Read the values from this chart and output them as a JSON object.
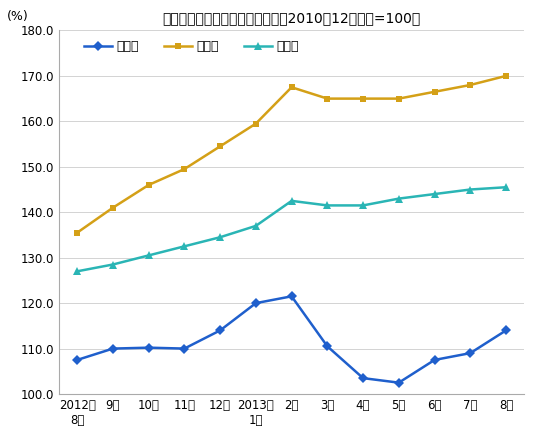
{
  "title": "猪肉、牛肉、羊肉价格变动情况（2010年12月价格=100）",
  "ylabel": "(%)",
  "x_labels": [
    "2012年\n8月",
    "9月",
    "10月",
    "11月",
    "12月",
    "2013年\n1月",
    "2月",
    "3月",
    "4月",
    "5月",
    "6月",
    "7月",
    "8月"
  ],
  "pork": [
    107.5,
    110.0,
    110.2,
    110.0,
    114.0,
    120.0,
    121.5,
    110.5,
    103.5,
    102.5,
    107.5,
    109.0,
    114.0
  ],
  "beef": [
    135.5,
    141.0,
    146.0,
    149.5,
    154.5,
    159.5,
    167.5,
    165.0,
    165.0,
    165.0,
    166.5,
    168.0,
    170.0
  ],
  "mutton": [
    127.0,
    128.5,
    130.5,
    132.5,
    134.5,
    137.0,
    142.5,
    141.5,
    141.5,
    143.0,
    144.0,
    145.0,
    145.5
  ],
  "pork_color": "#1f5fcc",
  "beef_color": "#d4a017",
  "mutton_color": "#2ab5b5",
  "ylim_min": 100.0,
  "ylim_max": 180.0,
  "yticks": [
    100.0,
    110.0,
    120.0,
    130.0,
    140.0,
    150.0,
    160.0,
    170.0,
    180.0
  ],
  "legend_pork": "猪　肉",
  "legend_beef": "牛　肉",
  "legend_mutton": "羊　肉",
  "bg_color": "#ffffff",
  "plot_bg_color": "#ffffff",
  "border_color": "#aaaaaa"
}
